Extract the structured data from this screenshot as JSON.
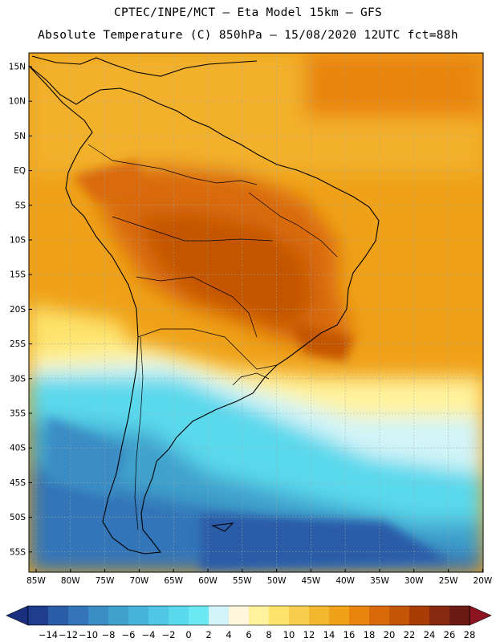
{
  "header": {
    "line1": "CPTEC/INPE/MCT –  Eta Model 15km – GFS",
    "line2": "Absolute Temperature (C) 850hPa – 15/08/2020 12UTC fct=88h"
  },
  "map": {
    "lon_labels": [
      "85W",
      "80W",
      "75W",
      "70W",
      "65W",
      "60W",
      "55W",
      "50W",
      "45W",
      "40W",
      "35W",
      "30W",
      "25W",
      "20W"
    ],
    "lat_labels": [
      "15N",
      "10N",
      "5N",
      "EQ",
      "5S",
      "10S",
      "15S",
      "20S",
      "25S",
      "30S",
      "35S",
      "40S",
      "45S",
      "50S",
      "55S"
    ],
    "gridlines": true
  },
  "colorbar": {
    "labels": [
      "-14",
      "-12",
      "-10",
      "-8",
      "-6",
      "-4",
      "-2",
      "0",
      "2",
      "4",
      "6",
      "8",
      "10",
      "12",
      "14",
      "16",
      "18",
      "20",
      "22",
      "24",
      "26",
      "28"
    ],
    "colors": [
      "#1f3d8c",
      "#2a5ca8",
      "#3375b8",
      "#3a8cc4",
      "#3fa2cc",
      "#45b4d8",
      "#4ec6e4",
      "#5ad8ec",
      "#6ce8f2",
      "#d2f4f8",
      "#fff6dc",
      "#fff29c",
      "#fde36c",
      "#f9cd4e",
      "#f3b830",
      "#efa118",
      "#e9850c",
      "#d96a0a",
      "#c45406",
      "#a83c04",
      "#882a10",
      "#6e1a14"
    ],
    "under_color": "#1a2f80",
    "over_color": "#8c1420"
  }
}
